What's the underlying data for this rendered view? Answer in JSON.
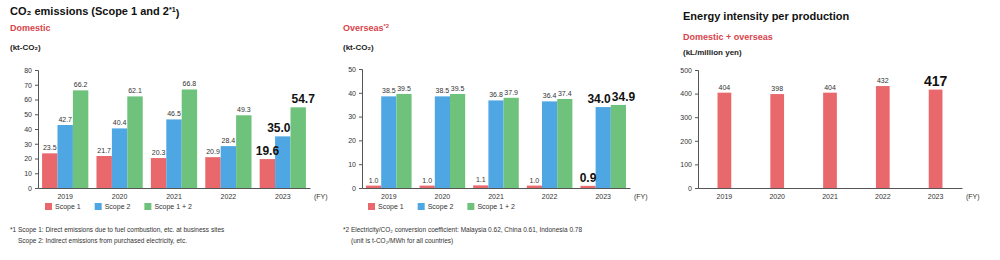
{
  "chart_data": [
    {
      "type": "bar",
      "title": "CO₂ emissions (Scope 1 and 2*1)",
      "subtitle": "Domestic",
      "y_label": "(kt-CO₂)",
      "x_label": "(FY)",
      "categories": [
        "2019",
        "2020",
        "2021",
        "2022",
        "2023"
      ],
      "series": [
        {
          "name": "Scope 1",
          "color": "#e9686b",
          "values": [
            23.5,
            21.7,
            20.3,
            20.9,
            19.6
          ],
          "value_labels": [
            "23.5",
            "21.7",
            "20.3",
            "20.9",
            "19.6"
          ]
        },
        {
          "name": "Scope 2",
          "color": "#4ea6e2",
          "values": [
            42.7,
            40.4,
            46.5,
            28.4,
            35.0
          ],
          "value_labels": [
            "42.7",
            "40.4",
            "46.5",
            "28.4",
            "35.0"
          ]
        },
        {
          "name": "Scope 1 + 2",
          "color": "#6fc27c",
          "values": [
            66.2,
            62.1,
            66.8,
            49.3,
            54.7
          ],
          "value_labels": [
            "66.2",
            "62.1",
            "66.8",
            "49.3",
            "54.7"
          ]
        }
      ],
      "ylim": [
        0,
        80
      ],
      "yticks": [
        0,
        10,
        20,
        30,
        40,
        50,
        60,
        70,
        80
      ],
      "grid": false,
      "legend": "bottom",
      "data_labels": true,
      "annotations": [
        "*1 Scope 1: Direct emissions due to fuel combustion, etc. at business sites",
        "Scope 2: Indirect emissions from purchased electricity, etc."
      ]
    },
    {
      "type": "bar",
      "subtitle": "Overseas*2",
      "y_label": "(kt-CO₂)",
      "x_label": "(FY)",
      "categories": [
        "2019",
        "2020",
        "2021",
        "2022",
        "2023"
      ],
      "series": [
        {
          "name": "Scope 1",
          "color": "#e9686b",
          "values": [
            1.0,
            1.0,
            1.1,
            1.0,
            0.9
          ],
          "value_labels": [
            "1.0",
            "1.0",
            "1.1",
            "1.0",
            "0.9"
          ]
        },
        {
          "name": "Scope 2",
          "color": "#4ea6e2",
          "values": [
            38.5,
            38.5,
            36.8,
            36.4,
            34.0
          ],
          "value_labels": [
            "38.5",
            "38.5",
            "36.8",
            "36.4",
            "34.0"
          ]
        },
        {
          "name": "Scope 1 + 2",
          "color": "#6fc27c",
          "values": [
            39.5,
            39.5,
            37.9,
            37.4,
            34.9
          ],
          "value_labels": [
            "39.5",
            "39.5",
            "37.9",
            "37.4",
            "34.9"
          ]
        }
      ],
      "ylim": [
        0,
        50
      ],
      "yticks": [
        0,
        10,
        20,
        30,
        40,
        50
      ],
      "grid": false,
      "legend": "bottom",
      "data_labels": true,
      "annotations": [
        "*2 Electricity/CO₂ conversion coefficient: Malaysia 0.62, China 0.61, Indonesia 0.78",
        "(unit is t-CO₂/MWh for all countries)"
      ]
    },
    {
      "type": "bar",
      "title": "Energy intensity per production",
      "subtitle": "Domestic + overseas",
      "y_label": "(kL/million yen)",
      "x_label": "(FY)",
      "categories": [
        "2019",
        "2020",
        "2021",
        "2022",
        "2023"
      ],
      "values": [
        404,
        398,
        404,
        432,
        417
      ],
      "color": "#e9686b",
      "ylim": [
        0,
        500
      ],
      "yticks": [
        0,
        100,
        200,
        300,
        400,
        500
      ],
      "grid": false,
      "data_labels": true
    }
  ]
}
